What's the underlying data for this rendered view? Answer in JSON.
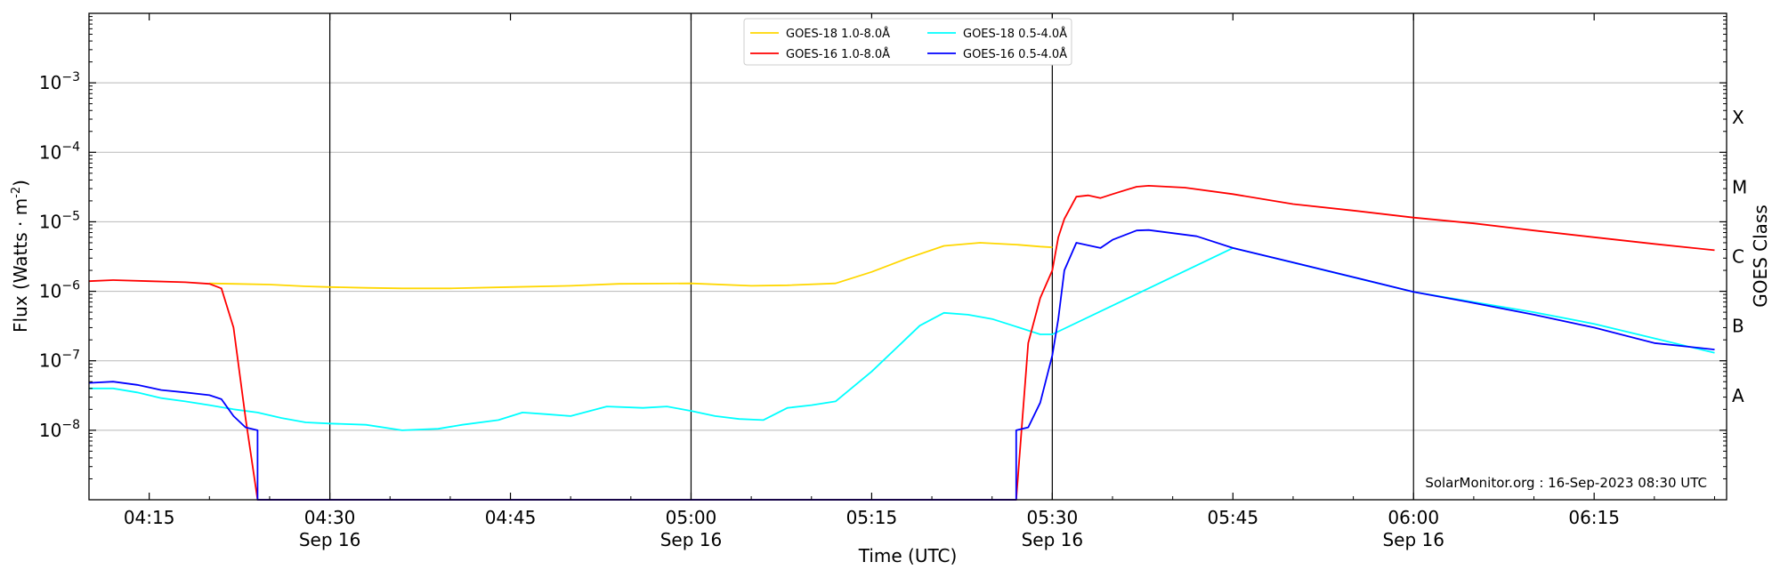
{
  "chart_data": {
    "type": "line",
    "xlabel": "Time (UTC)",
    "ylabel": "Flux (Watts · m",
    "ylabel_sup": "-2",
    "ylabel_close": ")",
    "right_label": "GOES Class",
    "credit": "SolarMonitor.org : 16-Sep-2023 08:30 UTC",
    "y_scale": "log",
    "xlim": [
      "04:10",
      "06:26"
    ],
    "ylim": [
      1e-09,
      0.01
    ],
    "x_ticks": [
      {
        "t": "04:15",
        "label": "04:15",
        "date": ""
      },
      {
        "t": "04:30",
        "label": "04:30",
        "date": "Sep 16"
      },
      {
        "t": "04:45",
        "label": "04:45",
        "date": ""
      },
      {
        "t": "05:00",
        "label": "05:00",
        "date": "Sep 16"
      },
      {
        "t": "05:15",
        "label": "05:15",
        "date": ""
      },
      {
        "t": "05:30",
        "label": "05:30",
        "date": "Sep 16"
      },
      {
        "t": "05:45",
        "label": "05:45",
        "date": ""
      },
      {
        "t": "06:00",
        "label": "06:00",
        "date": "Sep 16"
      },
      {
        "t": "06:15",
        "label": "06:15",
        "date": ""
      }
    ],
    "vlines": [
      "04:30",
      "05:00",
      "05:30",
      "06:00"
    ],
    "y_ticks": [
      {
        "exp": -8,
        "base": "10",
        "sup": "−8"
      },
      {
        "exp": -7,
        "base": "10",
        "sup": "−7"
      },
      {
        "exp": -6,
        "base": "10",
        "sup": "−6"
      },
      {
        "exp": -5,
        "base": "10",
        "sup": "−5"
      },
      {
        "exp": -4,
        "base": "10",
        "sup": "−4"
      },
      {
        "exp": -3,
        "base": "10",
        "sup": "−3"
      }
    ],
    "goes_classes": [
      {
        "label": "A",
        "exp": -7.5
      },
      {
        "label": "B",
        "exp": -6.5
      },
      {
        "label": "C",
        "exp": -5.5
      },
      {
        "label": "M",
        "exp": -4.5
      },
      {
        "label": "X",
        "exp": -3.5
      }
    ],
    "grid": "horizontal",
    "legend_position": "top-center",
    "series": [
      {
        "name": "GOES-18 1.0-8.0Å",
        "color": "#ffd700",
        "points": [
          [
            "04:20",
            1.3e-06
          ],
          [
            "04:22",
            1.28e-06
          ],
          [
            "04:25",
            1.25e-06
          ],
          [
            "04:28",
            1.18e-06
          ],
          [
            "04:30",
            1.15e-06
          ],
          [
            "04:33",
            1.12e-06
          ],
          [
            "04:36",
            1.1e-06
          ],
          [
            "04:40",
            1.1e-06
          ],
          [
            "04:45",
            1.15e-06
          ],
          [
            "04:50",
            1.2e-06
          ],
          [
            "04:54",
            1.28e-06
          ],
          [
            "05:00",
            1.3e-06
          ],
          [
            "05:05",
            1.2e-06
          ],
          [
            "05:08",
            1.22e-06
          ],
          [
            "05:12",
            1.3e-06
          ],
          [
            "05:15",
            1.9e-06
          ],
          [
            "05:18",
            3e-06
          ],
          [
            "05:21",
            4.5e-06
          ],
          [
            "05:24",
            5e-06
          ],
          [
            "05:27",
            4.7e-06
          ],
          [
            "05:29",
            4.4e-06
          ],
          [
            "05:30",
            4.3e-06
          ]
        ]
      },
      {
        "name": "GOES-18 0.5-4.0Å",
        "color": "#00ffff",
        "points": [
          [
            "04:10",
            4e-08
          ],
          [
            "04:12",
            4e-08
          ],
          [
            "04:14",
            3.5e-08
          ],
          [
            "04:16",
            2.9e-08
          ],
          [
            "04:18",
            2.6e-08
          ],
          [
            "04:20",
            2.3e-08
          ],
          [
            "04:22",
            2e-08
          ],
          [
            "04:24",
            1.8e-08
          ],
          [
            "04:26",
            1.5e-08
          ],
          [
            "04:28",
            1.3e-08
          ],
          [
            "04:30",
            1.25e-08
          ],
          [
            "04:33",
            1.2e-08
          ],
          [
            "04:36",
            1e-08
          ],
          [
            "04:39",
            1.05e-08
          ],
          [
            "04:41",
            1.2e-08
          ],
          [
            "04:44",
            1.4e-08
          ],
          [
            "04:46",
            1.8e-08
          ],
          [
            "04:48",
            1.7e-08
          ],
          [
            "04:50",
            1.6e-08
          ],
          [
            "04:53",
            2.2e-08
          ],
          [
            "04:56",
            2.1e-08
          ],
          [
            "04:58",
            2.2e-08
          ],
          [
            "05:00",
            1.9e-08
          ],
          [
            "05:02",
            1.6e-08
          ],
          [
            "05:04",
            1.45e-08
          ],
          [
            "05:06",
            1.4e-08
          ],
          [
            "05:08",
            2.1e-08
          ],
          [
            "05:10",
            2.3e-08
          ],
          [
            "05:12",
            2.6e-08
          ],
          [
            "05:15",
            7e-08
          ],
          [
            "05:17",
            1.5e-07
          ],
          [
            "05:19",
            3.2e-07
          ],
          [
            "05:21",
            4.9e-07
          ],
          [
            "05:23",
            4.6e-07
          ],
          [
            "05:25",
            4e-07
          ],
          [
            "05:27",
            3.1e-07
          ],
          [
            "05:29",
            2.4e-07
          ],
          [
            "05:30",
            2.4e-07
          ],
          [
            "05:45",
            4.2e-06
          ],
          [
            "06:00",
            9.8e-07
          ],
          [
            "06:10",
            5e-07
          ],
          [
            "06:15",
            3.4e-07
          ],
          [
            "06:20",
            2.1e-07
          ],
          [
            "06:25",
            1.3e-07
          ]
        ]
      },
      {
        "name": "GOES-16 1.0-8.0Å",
        "color": "#ff0000",
        "points": [
          [
            "04:10",
            1.4e-06
          ],
          [
            "04:12",
            1.45e-06
          ],
          [
            "04:15",
            1.4e-06
          ],
          [
            "04:18",
            1.35e-06
          ],
          [
            "04:20",
            1.28e-06
          ],
          [
            "04:21",
            1.1e-06
          ],
          [
            "04:22",
            3e-07
          ],
          [
            "04:23",
            1.5e-08
          ],
          [
            "04:24",
            1e-09
          ],
          [
            "05:27",
            1e-09
          ],
          [
            "05:28",
            1.8e-07
          ],
          [
            "05:29",
            8e-07
          ],
          [
            "05:30",
            2e-06
          ],
          [
            "05:30.5",
            6e-06
          ],
          [
            "05:31",
            1.1e-05
          ],
          [
            "05:32",
            2.3e-05
          ],
          [
            "05:33",
            2.4e-05
          ],
          [
            "05:34",
            2.2e-05
          ],
          [
            "05:35",
            2.5e-05
          ],
          [
            "05:37",
            3.2e-05
          ],
          [
            "05:38",
            3.3e-05
          ],
          [
            "05:41",
            3.1e-05
          ],
          [
            "05:45",
            2.5e-05
          ],
          [
            "05:50",
            1.8e-05
          ],
          [
            "05:55",
            1.45e-05
          ],
          [
            "06:00",
            1.15e-05
          ],
          [
            "06:05",
            9.5e-06
          ],
          [
            "06:10",
            7.5e-06
          ],
          [
            "06:15",
            6e-06
          ],
          [
            "06:20",
            4.8e-06
          ],
          [
            "06:25",
            3.9e-06
          ]
        ]
      },
      {
        "name": "GOES-16 0.5-4.0Å",
        "color": "#0000ff",
        "points": [
          [
            "04:10",
            4.8e-08
          ],
          [
            "04:12",
            5e-08
          ],
          [
            "04:14",
            4.5e-08
          ],
          [
            "04:16",
            3.8e-08
          ],
          [
            "04:18",
            3.5e-08
          ],
          [
            "04:20",
            3.2e-08
          ],
          [
            "04:21",
            2.8e-08
          ],
          [
            "04:22",
            1.6e-08
          ],
          [
            "04:23",
            1.1e-08
          ],
          [
            "04:24",
            1e-08
          ],
          [
            "04:24",
            1e-09
          ],
          [
            "05:27",
            1e-09
          ],
          [
            "05:27",
            1e-08
          ],
          [
            "05:28",
            1.1e-08
          ],
          [
            "05:29",
            2.5e-08
          ],
          [
            "05:30",
            1.2e-07
          ],
          [
            "05:30.5",
            4e-07
          ],
          [
            "05:31",
            2e-06
          ],
          [
            "05:32",
            5e-06
          ],
          [
            "05:34",
            4.2e-06
          ],
          [
            "05:35",
            5.5e-06
          ],
          [
            "05:37",
            7.5e-06
          ],
          [
            "05:38",
            7.6e-06
          ],
          [
            "05:42",
            6.2e-06
          ],
          [
            "05:45",
            4.2e-06
          ],
          [
            "05:50",
            2.6e-06
          ],
          [
            "05:55",
            1.6e-06
          ],
          [
            "06:00",
            9.8e-07
          ],
          [
            "06:05",
            6.8e-07
          ],
          [
            "06:10",
            4.6e-07
          ],
          [
            "06:15",
            3e-07
          ],
          [
            "06:20",
            1.8e-07
          ],
          [
            "06:25",
            1.45e-07
          ]
        ]
      }
    ]
  }
}
